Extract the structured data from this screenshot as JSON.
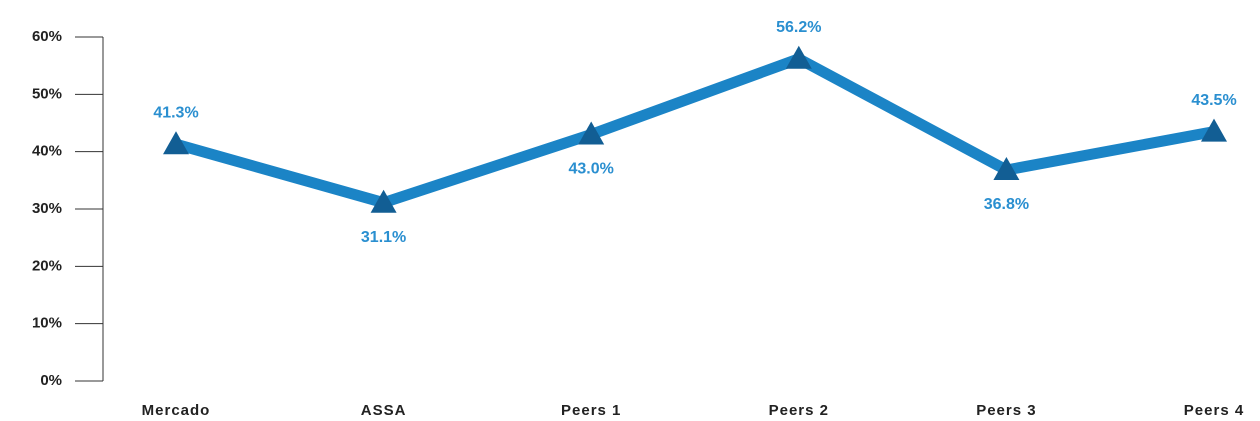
{
  "chart_data": {
    "type": "line",
    "categories": [
      "Mercado",
      "ASSA",
      "Peers 1",
      "Peers 2",
      "Peers 3",
      "Peers 4"
    ],
    "series": [
      {
        "color": "#1b84c6",
        "marker_color": "#125e94",
        "label_color": "#2a8fd0",
        "values": [
          41.3,
          31.1,
          43.0,
          56.2,
          36.8,
          43.5
        ],
        "value_labels": [
          "41.3%",
          "31.1%",
          "43.0%",
          "56.2%",
          "36.8%",
          "43.5%"
        ]
      }
    ],
    "ylim": [
      0,
      60
    ],
    "yticks": [
      {
        "value": 0,
        "label": "0%"
      },
      {
        "value": 10,
        "label": "10%"
      },
      {
        "value": 20,
        "label": "20%"
      },
      {
        "value": 30,
        "label": "30%"
      },
      {
        "value": 40,
        "label": "40%"
      },
      {
        "value": 50,
        "label": "50%"
      },
      {
        "value": 60,
        "label": "60%"
      }
    ]
  }
}
